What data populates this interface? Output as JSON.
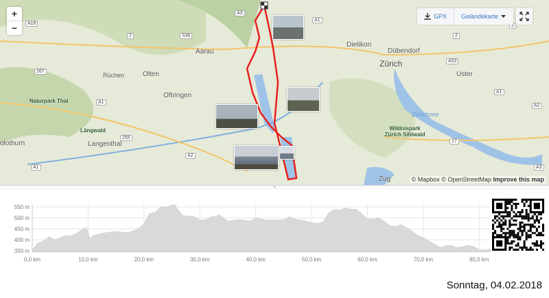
{
  "map": {
    "zoom_in": "+",
    "zoom_out": "−",
    "toolbar": {
      "gpx_label": "GPX",
      "layer_label": "Geländekarte"
    },
    "attribution": {
      "mapbox": "© Mapbox",
      "osm": "© OpenStreetMap",
      "improve": "Improve this map"
    },
    "route_color": "#e8201e",
    "places": [
      {
        "name": "Zürich",
        "kind": "city"
      },
      {
        "name": "Aarau",
        "kind": "town"
      },
      {
        "name": "Olten",
        "kind": "town"
      },
      {
        "name": "Oftringen",
        "kind": "town"
      },
      {
        "name": "Dietikon",
        "kind": "town"
      },
      {
        "name": "Dübendorf",
        "kind": "town"
      },
      {
        "name": "Uster",
        "kind": "town"
      },
      {
        "name": "Langenthal",
        "kind": "town"
      },
      {
        "name": "Zug",
        "kind": "town"
      },
      {
        "name": "olothurn",
        "kind": "town"
      },
      {
        "name": "Lăngwald",
        "kind": "park"
      },
      {
        "name": "Naturpark Thal",
        "kind": "park"
      },
      {
        "name": "Wildnispark Zürich Sihlwald",
        "kind": "park"
      },
      {
        "name": "Rüchen",
        "kind": "town"
      },
      {
        "name": "Zürichsee",
        "kind": "lake"
      }
    ],
    "road_shields": [
      "A3",
      "A18",
      "A1",
      "267",
      "S36",
      "A1",
      "A53",
      "A1",
      "A2",
      "255",
      "A1",
      "17",
      "A2",
      "A3",
      "2",
      "2",
      "2"
    ]
  },
  "elevation_chart": {
    "handle": "≡",
    "qr_code": "qr-code"
  },
  "chart_data": {
    "type": "area",
    "xlabel": "",
    "ylabel": "",
    "x_ticks": [
      "0,0 km",
      "10,0 km",
      "20,0 km",
      "30,0 km",
      "40,0 km",
      "50,0 km",
      "60,0 km",
      "70,0 km",
      "80,0 km"
    ],
    "y_ticks": [
      "350 m",
      "400 m",
      "450 m",
      "500 m",
      "550 m"
    ],
    "xlim": [
      0,
      82
    ],
    "ylim": [
      345,
      565
    ],
    "grid": true,
    "fill_color": "#d9d9d9",
    "points": [
      [
        0,
        355
      ],
      [
        1,
        385
      ],
      [
        2,
        395
      ],
      [
        3,
        415
      ],
      [
        4,
        400
      ],
      [
        5,
        410
      ],
      [
        6,
        420
      ],
      [
        7,
        418
      ],
      [
        8,
        430
      ],
      [
        9,
        448
      ],
      [
        9.5,
        455
      ],
      [
        10,
        440
      ],
      [
        10.3,
        405
      ],
      [
        11,
        420
      ],
      [
        13,
        432
      ],
      [
        15,
        438
      ],
      [
        17,
        432
      ],
      [
        18,
        440
      ],
      [
        19,
        450
      ],
      [
        20,
        475
      ],
      [
        21,
        520
      ],
      [
        22,
        525
      ],
      [
        23,
        550
      ],
      [
        24,
        550
      ],
      [
        25,
        558
      ],
      [
        25.5,
        562
      ],
      [
        26,
        540
      ],
      [
        27,
        510
      ],
      [
        28,
        508
      ],
      [
        29,
        505
      ],
      [
        30,
        490
      ],
      [
        31,
        492
      ],
      [
        32,
        505
      ],
      [
        33,
        508
      ],
      [
        33.5,
        515
      ],
      [
        34,
        505
      ],
      [
        35,
        485
      ],
      [
        37,
        492
      ],
      [
        38,
        490
      ],
      [
        39,
        485
      ],
      [
        40,
        500
      ],
      [
        41,
        495
      ],
      [
        42,
        490
      ],
      [
        43,
        492
      ],
      [
        44,
        490
      ],
      [
        45,
        492
      ],
      [
        46,
        505
      ],
      [
        47,
        495
      ],
      [
        48,
        490
      ],
      [
        49,
        485
      ],
      [
        50,
        478
      ],
      [
        51,
        475
      ],
      [
        52,
        480
      ],
      [
        53,
        520
      ],
      [
        54,
        538
      ],
      [
        55,
        535
      ],
      [
        56,
        545
      ],
      [
        57,
        540
      ],
      [
        58,
        540
      ],
      [
        59,
        520
      ],
      [
        60,
        495
      ],
      [
        61,
        495
      ],
      [
        62,
        500
      ],
      [
        63,
        485
      ],
      [
        64,
        465
      ],
      [
        65,
        460
      ],
      [
        66,
        470
      ],
      [
        67,
        455
      ],
      [
        68,
        440
      ],
      [
        69,
        420
      ],
      [
        70,
        410
      ],
      [
        71,
        395
      ],
      [
        72,
        380
      ],
      [
        73,
        365
      ],
      [
        74,
        372
      ],
      [
        75,
        375
      ],
      [
        76,
        365
      ],
      [
        77,
        368
      ],
      [
        78,
        375
      ],
      [
        79,
        370
      ],
      [
        80,
        355
      ],
      [
        81,
        353
      ],
      [
        82,
        358
      ]
    ]
  },
  "caption": {
    "date": "Sonntag, 04.02.2018"
  }
}
